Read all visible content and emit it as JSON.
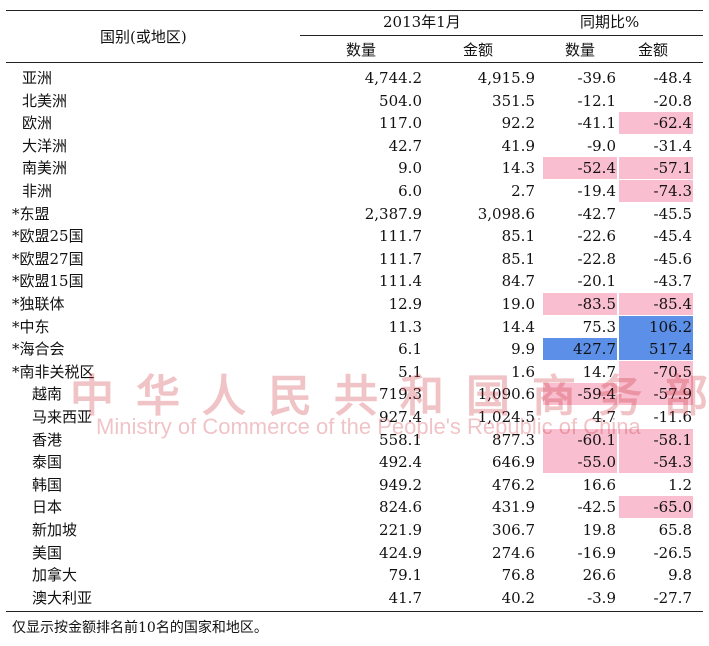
{
  "header": {
    "region": "国别(或地区)",
    "period": "2013年1月",
    "yoy": "同期比%",
    "qty": "数量",
    "amount": "金额",
    "qty2": "数量",
    "amount2": "金额"
  },
  "colors": {
    "pink": "#f9bfd0",
    "blue": "#5b8fe8"
  },
  "table": {
    "rows": [
      [
        "亚洲",
        "4,744.2",
        "4,915.9",
        "-39.6",
        "-48.4"
      ],
      [
        "北美洲",
        "504.0",
        "351.5",
        "-12.1",
        "-20.8"
      ],
      [
        "欧洲",
        "117.0",
        "92.2",
        "-41.1",
        "-62.4"
      ],
      [
        "大洋洲",
        "42.7",
        "41.9",
        "-9.0",
        "-31.4"
      ],
      [
        "南美洲",
        "9.0",
        "14.3",
        "-52.4",
        "-57.1"
      ],
      [
        "非洲",
        "6.0",
        "2.7",
        "-19.4",
        "-74.3"
      ],
      [
        "*东盟",
        "2,387.9",
        "3,098.6",
        "-42.7",
        "-45.5"
      ],
      [
        "*欧盟25国",
        "111.7",
        "85.1",
        "-22.6",
        "-45.4"
      ],
      [
        "*欧盟27国",
        "111.7",
        "85.1",
        "-22.8",
        "-45.6"
      ],
      [
        "*欧盟15国",
        "111.4",
        "84.7",
        "-20.1",
        "-43.7"
      ],
      [
        "*独联体",
        "12.9",
        "19.0",
        "-83.5",
        "-85.4"
      ],
      [
        "*中东",
        "11.3",
        "14.4",
        "75.3",
        "106.2"
      ],
      [
        "*海合会",
        "6.1",
        "9.9",
        "427.7",
        "517.4"
      ],
      [
        "*南非关税区",
        "5.1",
        "1.6",
        "14.7",
        "-70.5"
      ],
      [
        "越南",
        "719.3",
        "1,090.6",
        "-59.4",
        "-57.9"
      ],
      [
        "马来西亚",
        "927.4",
        "1,024.5",
        "4.7",
        "-11.6"
      ],
      [
        "香港",
        "558.1",
        "877.3",
        "-60.1",
        "-58.1"
      ],
      [
        "泰国",
        "492.4",
        "646.9",
        "-55.0",
        "-54.3"
      ],
      [
        "韩国",
        "949.2",
        "476.2",
        "16.6",
        "1.2"
      ],
      [
        "日本",
        "824.6",
        "431.9",
        "-42.5",
        "-65.0"
      ],
      [
        "新加坡",
        "221.9",
        "306.7",
        "19.8",
        "65.8"
      ],
      [
        "美国",
        "424.9",
        "274.6",
        "-16.9",
        "-26.5"
      ],
      [
        "加拿大",
        "79.1",
        "76.8",
        "26.6",
        "9.8"
      ],
      [
        "澳大利亚",
        "41.7",
        "40.2",
        "-3.9",
        "-27.7"
      ]
    ],
    "highlights": [
      [
        null,
        null
      ],
      [
        null,
        null
      ],
      [
        null,
        "pink"
      ],
      [
        null,
        null
      ],
      [
        "pink",
        "pink"
      ],
      [
        null,
        "pink"
      ],
      [
        null,
        null
      ],
      [
        null,
        null
      ],
      [
        null,
        null
      ],
      [
        null,
        null
      ],
      [
        "pink",
        "pink"
      ],
      [
        null,
        "blue"
      ],
      [
        "blue",
        "blue"
      ],
      [
        null,
        "pink"
      ],
      [
        "pink",
        "pink"
      ],
      [
        null,
        null
      ],
      [
        "pink",
        "pink"
      ],
      [
        "pink",
        "pink"
      ],
      [
        null,
        null
      ],
      [
        null,
        "pink"
      ],
      [
        null,
        null
      ],
      [
        null,
        null
      ],
      [
        null,
        null
      ],
      [
        null,
        null
      ]
    ]
  },
  "watermark": {
    "cn": "中华人民共和国商务部",
    "en": "Ministry of Commerce of the People's Republic of China"
  },
  "footnote": "仅显示按金额排名前10名的国家和地区。"
}
